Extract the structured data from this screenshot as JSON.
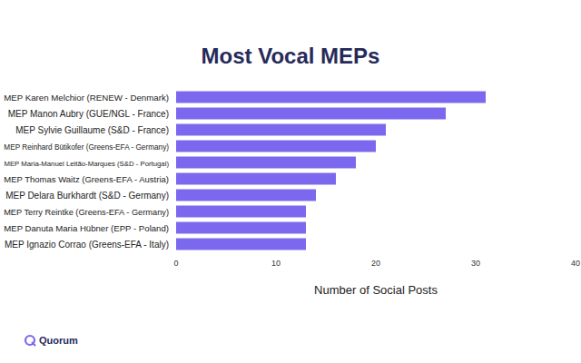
{
  "chart_data": {
    "type": "bar",
    "orientation": "horizontal",
    "title": "Most Vocal MEPs",
    "x_label": "Number of Social Posts",
    "annotation": "Quorum",
    "categories": [
      "MEP Karen Melchior (RENEW - Denmark)",
      "MEP Manon Aubry (GUE/NGL - France)",
      "MEP Sylvie Guillaume (S&D - France)",
      "MEP Reinhard Bütikofer (Greens-EFA - Germany)",
      "MEP Maria-Manuel Leitão-Marques (S&D - Portugal)",
      "MEP Thomas Waitz (Greens-EFA - Austria)",
      "MEP Delara Burkhardt (S&D - Germany)",
      "MEP Terry Reintke (Greens-EFA - Germany)",
      "MEP Danuta Maria Hübner (EPP - Poland)",
      "MEP Ignazio Corrao (Greens-EFA - Italy)"
    ],
    "values": [
      31,
      27,
      21,
      20,
      18,
      16,
      14,
      13,
      13,
      13
    ],
    "color": "#7b68ee",
    "xlim": [
      0,
      40
    ],
    "xticks": [
      0,
      10,
      20,
      30,
      40
    ],
    "grid": false
  }
}
